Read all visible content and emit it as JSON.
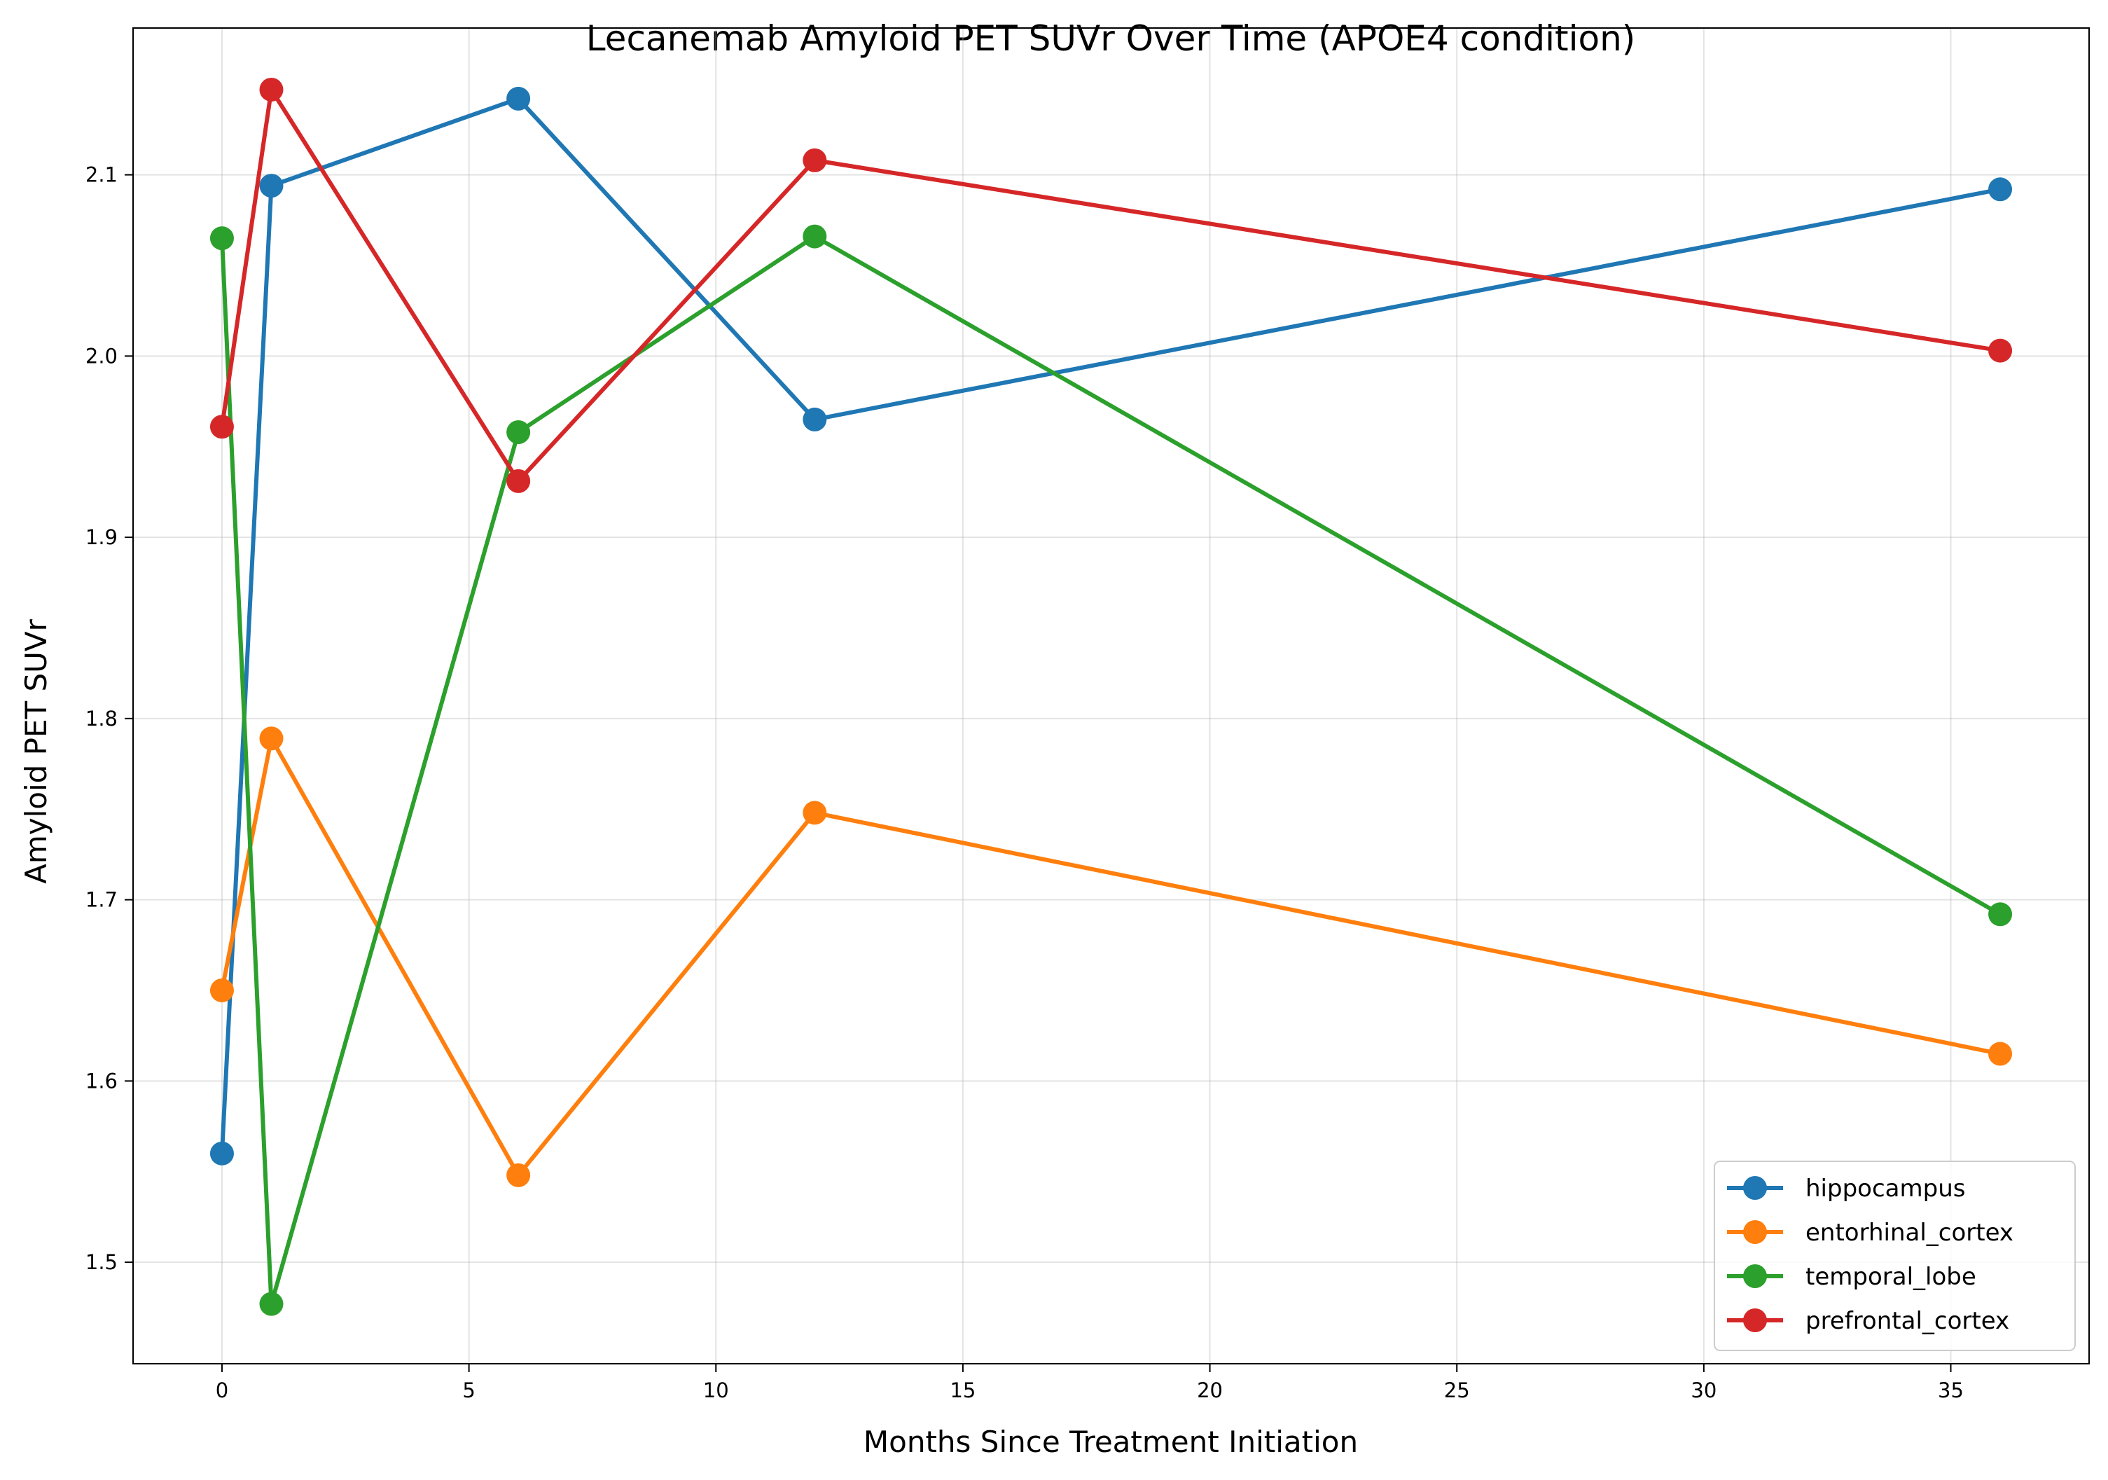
{
  "chart_data": {
    "type": "line",
    "title": "Lecanemab Amyloid PET SUVr Over Time (APOE4 condition)",
    "xlabel": "Months Since Treatment Initiation",
    "ylabel": "Amyloid PET SUVr",
    "xlim": [
      -1.8,
      37.8
    ],
    "ylim": [
      1.444,
      2.181
    ],
    "xticks": [
      0,
      5,
      10,
      15,
      20,
      25,
      30,
      35
    ],
    "yticks": [
      1.5,
      1.6,
      1.7,
      1.8,
      1.9,
      2.0,
      2.1
    ],
    "xtick_labels": [
      "0",
      "5",
      "10",
      "15",
      "20",
      "25",
      "30",
      "35"
    ],
    "ytick_labels": [
      "1.5",
      "1.6",
      "1.7",
      "1.8",
      "1.9",
      "2.0",
      "2.1"
    ],
    "grid": true,
    "legend_position": "lower-right",
    "x": [
      0,
      1,
      6,
      12,
      36
    ],
    "series": [
      {
        "name": "hippocampus",
        "color": "#1f77b4",
        "values": [
          1.56,
          2.094,
          2.142,
          1.965,
          2.092
        ]
      },
      {
        "name": "entorhinal_cortex",
        "color": "#ff7f0e",
        "values": [
          1.65,
          1.789,
          1.548,
          1.748,
          1.615
        ]
      },
      {
        "name": "temporal_lobe",
        "color": "#2ca02c",
        "values": [
          2.065,
          1.477,
          1.958,
          2.066,
          1.692
        ]
      },
      {
        "name": "prefrontal_cortex",
        "color": "#d62728",
        "values": [
          1.961,
          2.147,
          1.931,
          2.108,
          2.003
        ]
      }
    ]
  }
}
